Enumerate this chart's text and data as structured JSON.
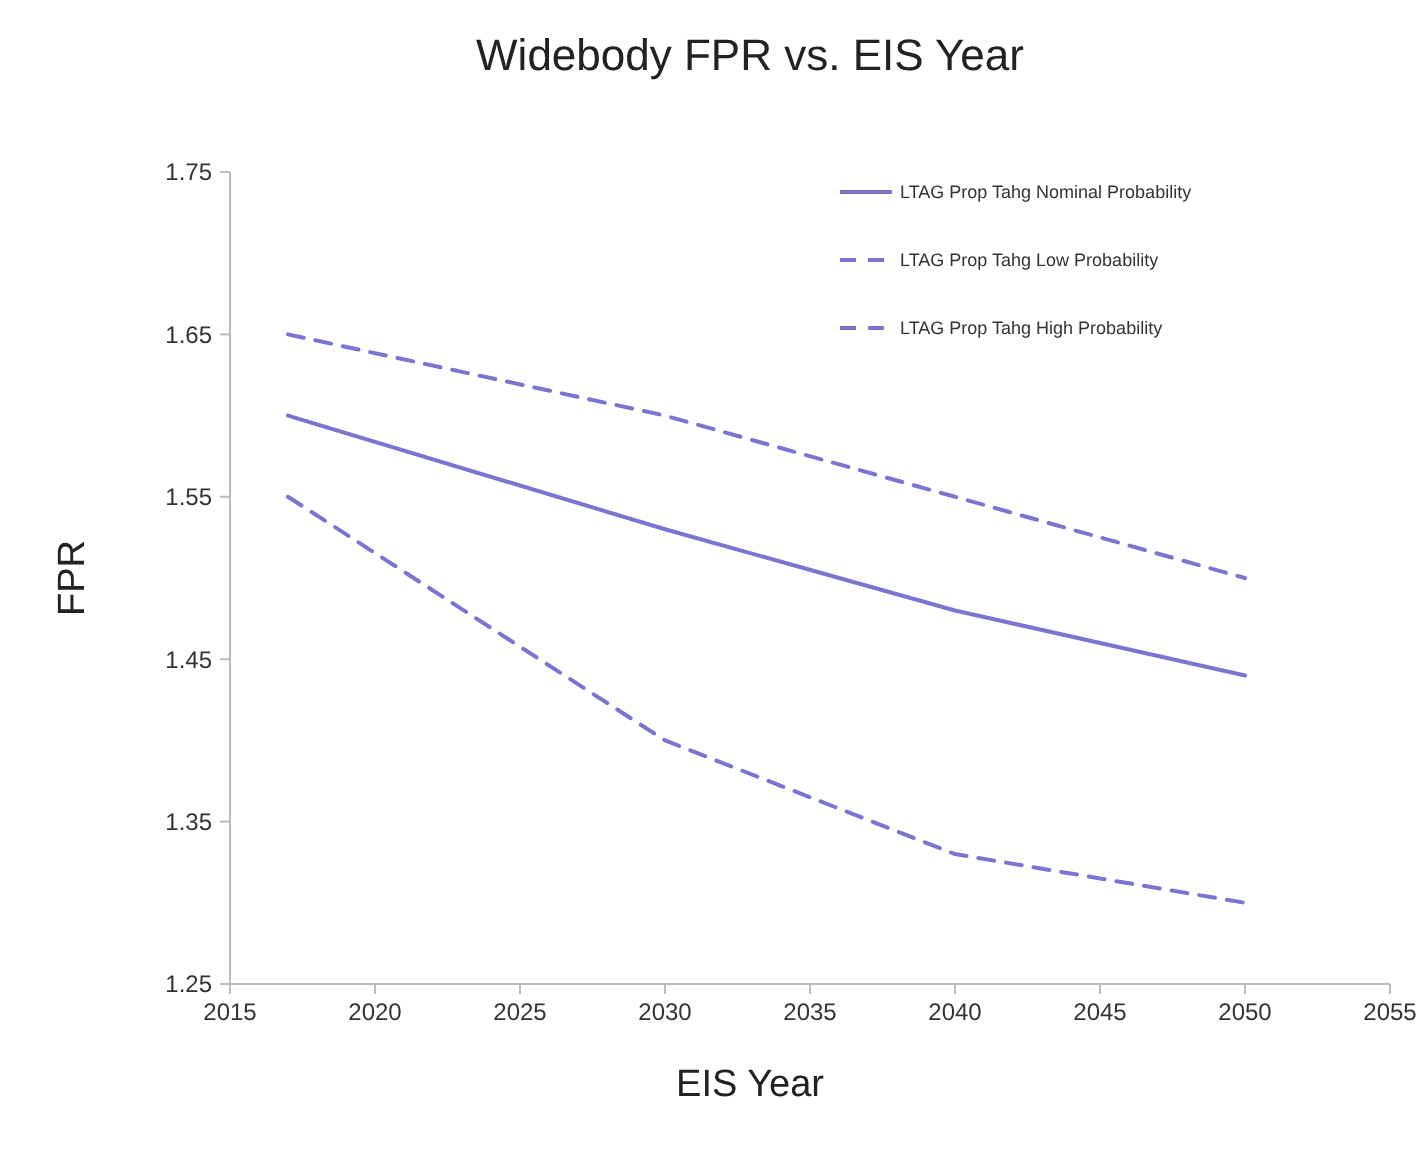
{
  "chart_data": {
    "type": "line",
    "title": "Widebody FPR vs. EIS Year",
    "xlabel": "EIS Year",
    "ylabel": "FPR",
    "x": [
      2017,
      2030,
      2040,
      2050
    ],
    "series": [
      {
        "name": "LTAG Prop Tahg Nominal Probability",
        "color": "#7b74d0",
        "values": [
          1.6,
          1.53,
          1.48,
          1.44
        ],
        "line_style": "solid"
      },
      {
        "name": "LTAG Prop Tahg Low Probability",
        "color": "#7b74d0",
        "values": [
          1.65,
          1.6,
          1.55,
          1.5
        ],
        "line_style": "dashed"
      },
      {
        "name": "LTAG Prop Tahg High Probability",
        "color": "#7b74d0",
        "values": [
          1.55,
          1.4,
          1.33,
          1.3
        ],
        "line_style": "dashed"
      }
    ],
    "xlim": [
      2015,
      2055
    ],
    "xticks": [
      2015,
      2020,
      2025,
      2030,
      2035,
      2040,
      2045,
      2050,
      2055
    ],
    "ylim": [
      1.25,
      1.75
    ],
    "yticks": [
      {
        "value": 1.25,
        "label": "1.25"
      },
      {
        "value": 1.35,
        "label": "1.35"
      },
      {
        "value": 1.45,
        "label": "1.45"
      },
      {
        "value": 1.55,
        "label": "1.55"
      },
      {
        "value": 1.65,
        "label": "1.65"
      },
      {
        "value": 1.75,
        "label": "1.75"
      }
    ],
    "grid": false,
    "legend": "top right",
    "marker": "none"
  }
}
